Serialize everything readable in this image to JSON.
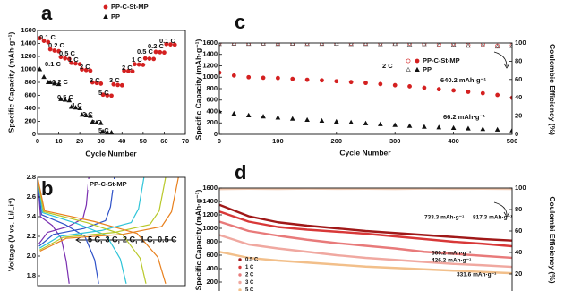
{
  "chart_data": [
    {
      "type": "scatter",
      "label": "a",
      "xlabel": "Cycle Number",
      "ylabel": "Specific Capacity (mAh·g⁻¹)",
      "xlim": [
        0,
        70
      ],
      "xticks": [
        0,
        10,
        20,
        30,
        40,
        50,
        60,
        70
      ],
      "ylim": [
        0,
        1600
      ],
      "yticks": [
        0,
        200,
        400,
        600,
        800,
        1000,
        1200,
        1400,
        1600
      ],
      "series": [
        {
          "name": "PP-C-St-MP",
          "color": "#d42020",
          "marker": "circle",
          "x": [
            1,
            3,
            5,
            6,
            8,
            10,
            11,
            13,
            15,
            16,
            18,
            20,
            21,
            23,
            25,
            26,
            28,
            30,
            31,
            33,
            35,
            36,
            38,
            40,
            41,
            43,
            45,
            46,
            48,
            50,
            51,
            53,
            55,
            56,
            58,
            60,
            61,
            63,
            65
          ],
          "values": [
            1480,
            1440,
            1420,
            1310,
            1290,
            1280,
            1190,
            1170,
            1160,
            1100,
            1090,
            1080,
            1000,
            990,
            980,
            800,
            790,
            780,
            610,
            600,
            595,
            770,
            760,
            755,
            980,
            975,
            970,
            1080,
            1075,
            1070,
            1170,
            1165,
            1160,
            1270,
            1265,
            1260,
            1390,
            1385,
            1380
          ]
        },
        {
          "name": "PP",
          "color": "#111111",
          "marker": "triangle",
          "x": [
            1,
            3,
            5,
            6,
            8,
            10,
            11,
            13,
            15,
            16,
            18,
            20,
            21,
            23,
            25,
            26,
            28,
            30,
            31,
            33,
            35
          ],
          "values": [
            1000,
            880,
            800,
            800,
            780,
            770,
            540,
            530,
            520,
            420,
            410,
            400,
            300,
            290,
            280,
            190,
            180,
            170,
            40,
            30,
            25
          ]
        }
      ],
      "annotations": [
        {
          "text": "0.1 C"
        },
        {
          "text": "0.2 C"
        },
        {
          "text": "0.5 C"
        },
        {
          "text": "1 C"
        },
        {
          "text": "2 C"
        },
        {
          "text": "3 C"
        },
        {
          "text": "5 C"
        },
        {
          "text": "3 C"
        },
        {
          "text": "2 C"
        },
        {
          "text": "1 C"
        },
        {
          "text": "0.5 C"
        },
        {
          "text": "0.2 C"
        },
        {
          "text": "0.1 C"
        },
        {
          "text": "0.1 C"
        },
        {
          "text": "0.2 C"
        },
        {
          "text": "0.5 C"
        },
        {
          "text": "1 C"
        },
        {
          "text": "2 C"
        },
        {
          "text": "3 C"
        },
        {
          "text": "5 C"
        }
      ]
    },
    {
      "type": "line",
      "label": "b",
      "subtitle": "PP-C-St-MP",
      "ylabel": "Voltage (V vs. Li/Li⁺)",
      "xlim": [
        0,
        1500
      ],
      "ylim": [
        1.7,
        2.8
      ],
      "yticks": [
        1.8,
        {
          "value": 2,
          "label": "2.0"
        },
        2.2,
        2.4,
        2.6,
        2.8
      ],
      "series": [
        {
          "name": "5 C,",
          "color": "#7a2fb0",
          "x": [
            10,
            100,
            310,
            460,
            495,
            520,
            null,
            0,
            30,
            150,
            240,
            290,
            320
          ],
          "values": [
            2.12,
            2.24,
            2.3,
            2.38,
            2.52,
            2.8,
            null,
            2.8,
            2.4,
            2.31,
            2.18,
            1.95,
            1.72
          ]
        },
        {
          "name": "3 C,",
          "color": "#2f52c8",
          "x": [
            15,
            160,
            470,
            690,
            740,
            780,
            null,
            0,
            40,
            280,
            480,
            580,
            620
          ],
          "values": [
            2.1,
            2.22,
            2.28,
            2.36,
            2.5,
            2.8,
            null,
            2.8,
            2.42,
            2.32,
            2.2,
            1.96,
            1.72
          ]
        },
        {
          "name": "2 C,",
          "color": "#2ec4d8",
          "x": [
            20,
            220,
            650,
            950,
            1025,
            1080,
            null,
            0,
            50,
            400,
            700,
            840,
            900
          ],
          "values": [
            2.08,
            2.2,
            2.26,
            2.34,
            2.48,
            2.8,
            null,
            2.8,
            2.44,
            2.33,
            2.21,
            1.97,
            1.72
          ]
        },
        {
          "name": "1 C,",
          "color": "#b8c828",
          "x": [
            20,
            260,
            780,
            1140,
            1235,
            1300,
            null,
            0,
            60,
            500,
            860,
            1040,
            1100
          ],
          "values": [
            2.06,
            2.19,
            2.24,
            2.32,
            2.46,
            2.8,
            null,
            2.8,
            2.45,
            2.34,
            2.22,
            1.98,
            1.72
          ]
        },
        {
          "name": "0.5 C",
          "color": "#e8801e",
          "x": [
            25,
            290,
            860,
            1260,
            1360,
            1430,
            null,
            0,
            70,
            580,
            1010,
            1220,
            1300
          ],
          "values": [
            2.05,
            2.18,
            2.22,
            2.3,
            2.45,
            2.8,
            null,
            2.8,
            2.46,
            2.35,
            2.23,
            1.99,
            1.72
          ]
        }
      ]
    },
    {
      "type": "scatter",
      "label": "c",
      "xlabel": "Cycle Number",
      "ylabel": "Specific Capacity (mAh·g⁻¹)",
      "y2label": "Coulombic Efficiency (%)",
      "xlim": [
        0,
        500
      ],
      "xticks": [
        0,
        100,
        200,
        300,
        400,
        500
      ],
      "ylim": [
        0,
        1600
      ],
      "yticks": [
        0,
        200,
        400,
        600,
        800,
        1000,
        1200,
        1400,
        1600
      ],
      "y2lim": [
        0,
        100
      ],
      "y2ticks": [
        0,
        20,
        40,
        60,
        80,
        100
      ],
      "x": [
        0,
        25,
        50,
        75,
        100,
        125,
        150,
        175,
        200,
        225,
        250,
        275,
        300,
        325,
        350,
        375,
        400,
        425,
        450,
        475,
        500
      ],
      "series": [
        {
          "color": "#d42020",
          "marker": "open-circle",
          "axis": "y2",
          "values": [
            99.5,
            99.6,
            99.4,
            99.6,
            99.5,
            99.4,
            99.6,
            99.5,
            99.3,
            99.5,
            99.6,
            99.4,
            99.2,
            99.5,
            99,
            98.6,
            99.1,
            97.8,
            98.4,
            96.9,
            97.5
          ]
        },
        {
          "color": "#555555",
          "marker": "open-triangle",
          "axis": "y2",
          "values": [
            98.8,
            99,
            98.9,
            99.1,
            98.8,
            99,
            98.7,
            98.9,
            99,
            98.6,
            98.8,
            98.5,
            98.9,
            98.2,
            98.6,
            97.5,
            98,
            96.8,
            97.2,
            95.9,
            96.5
          ]
        },
        {
          "name": "PP-C-St-MP",
          "color": "#d42020",
          "marker": "circle",
          "values": [
            1080,
            1030,
            1000,
            990,
            985,
            970,
            955,
            945,
            930,
            915,
            900,
            880,
            860,
            840,
            815,
            790,
            770,
            745,
            720,
            690,
            640.2
          ]
        },
        {
          "name": "PP",
          "color": "#111111",
          "marker": "triangle",
          "values": [
            400,
            360,
            330,
            310,
            290,
            270,
            250,
            235,
            220,
            205,
            190,
            175,
            160,
            145,
            130,
            120,
            110,
            100,
            90,
            80,
            66.2
          ]
        }
      ],
      "annotations": [
        {
          "text": "2 C",
          "color": "#111111"
        },
        {
          "text": "640.2 mAh·g⁻¹",
          "color": "#d42020"
        },
        {
          "text": "66.2 mAh·g⁻¹",
          "color": "#111111"
        }
      ]
    },
    {
      "type": "line",
      "label": "d",
      "ylabel": "Specific Capacity (mAh·g⁻¹)",
      "y2label": "Coulombi Efficiency (%)",
      "xlim": [
        0,
        500
      ],
      "ylim": [
        0,
        1600
      ],
      "yticks": [
        0,
        200,
        400,
        600,
        800,
        1000,
        1200,
        1400,
        1600
      ],
      "y2lim": [
        0,
        100
      ],
      "y2ticks": [
        0,
        20,
        40,
        60,
        80,
        100
      ],
      "x": [
        0,
        50,
        100,
        150,
        200,
        250,
        300,
        350,
        400,
        450,
        500
      ],
      "series": [
        {
          "color": "#f0c8b0",
          "axis": "y2",
          "values": [
            99,
            99.3,
            99.1,
            99.4,
            99.2,
            99.3,
            99.1,
            99.4,
            99.2,
            99.3,
            99.1
          ]
        },
        {
          "name": "0.5 C",
          "color": "#a01818",
          "values": [
            1350,
            1180,
            1090,
            1040,
            1000,
            960,
            930,
            900,
            870,
            840,
            817.3
          ]
        },
        {
          "name": "1 C",
          "color": "#d83838",
          "values": [
            1250,
            1100,
            1020,
            980,
            950,
            920,
            880,
            840,
            800,
            770,
            733.3
          ]
        },
        {
          "name": "2 C",
          "color": "#e87a7a",
          "values": [
            1100,
            960,
            890,
            830,
            780,
            740,
            700,
            650,
            620,
            590,
            560.2
          ]
        },
        {
          "name": "3 C",
          "color": "#f0a8a0",
          "values": [
            900,
            760,
            700,
            650,
            600,
            560,
            530,
            500,
            470,
            450,
            426.2
          ]
        },
        {
          "name": "5 C",
          "color": "#f2bf8a",
          "values": [
            650,
            560,
            520,
            490,
            460,
            430,
            410,
            390,
            370,
            350,
            331.6
          ]
        }
      ],
      "annotations": [
        {
          "text": "733.3 mAh·g⁻¹",
          "color": "#d83838"
        },
        {
          "text": "817.3 mAh·g⁻¹",
          "color": "#a01818"
        },
        {
          "text": "560.2 mAh·g⁻¹",
          "color": "#e87a7a"
        },
        {
          "text": "426.2 mAh·g⁻¹",
          "color": "#f0a8a0"
        },
        {
          "text": "331.6 mAh·g⁻¹",
          "color": "#f2bf8a"
        }
      ]
    }
  ]
}
